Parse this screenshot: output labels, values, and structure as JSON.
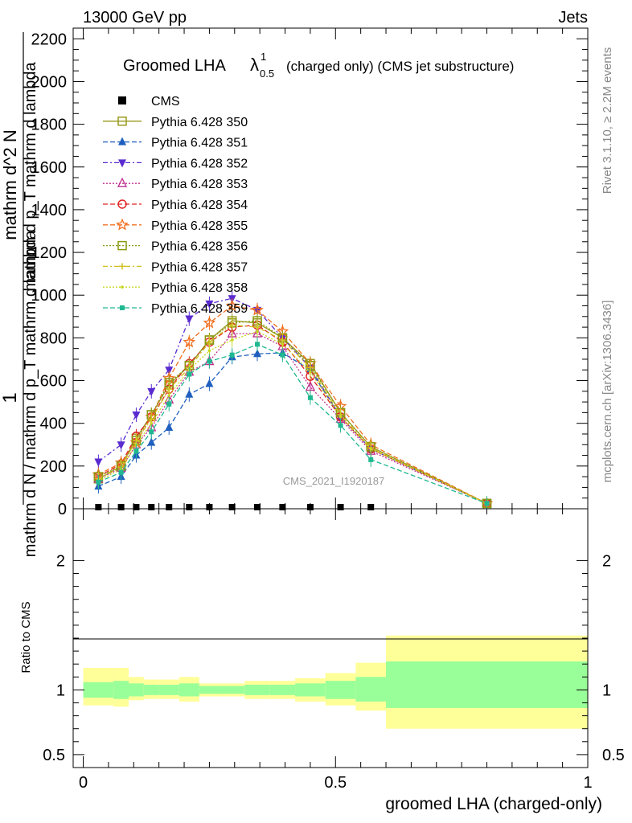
{
  "header": {
    "left": "13000 GeV pp",
    "right": "Jets"
  },
  "side": {
    "rivet": "Rivet 3.1.10, ≥ 2.2M events",
    "mcplots": "mcplots.cern.ch [arXiv:1306.3436]"
  },
  "chart_data": {
    "type": "line",
    "title_main": "Groomed LHA",
    "title_lambda": "λ",
    "title_sup": "1",
    "title_sub": "0.5",
    "title_rest": "(charged only) (CMS jet substructure)",
    "watermark": "CMS_2021_I1920187",
    "ylabel_num": "1",
    "ylabel_den": "mathrm d N / mathrm d p_T mathrm d lambda",
    "ylabel_big": "mathrm d^2 N",
    "ylabel_small": "mathrm d p_T mathrm d lambda",
    "ylim": [
      0,
      2250
    ],
    "yticks": [
      "0",
      "200",
      "400",
      "600",
      "800",
      "1000",
      "1200",
      "1400",
      "1600",
      "1800",
      "2000",
      "2200"
    ],
    "xlim": [
      -0.02,
      1.0
    ],
    "xlabel": "groomed LHA (charged-only)",
    "xticks": [
      "0",
      "0.5",
      "1"
    ],
    "ratio_label": "Ratio to CMS",
    "ratio_ylim": [
      0.4,
      2.4
    ],
    "ratio_yticks": [
      "0.5",
      "1",
      "2"
    ],
    "x": [
      0.03,
      0.075,
      0.105,
      0.135,
      0.17,
      0.21,
      0.25,
      0.295,
      0.345,
      0.395,
      0.45,
      0.51,
      0.57,
      0.8
    ],
    "cms": [
      0,
      0,
      0,
      0,
      0,
      0,
      0,
      0,
      0,
      0,
      0,
      0,
      0,
      0
    ],
    "band_edges": [
      0,
      0.06,
      0.09,
      0.12,
      0.15,
      0.19,
      0.23,
      0.27,
      0.32,
      0.37,
      0.42,
      0.48,
      0.54,
      0.6,
      1.0
    ],
    "band_inner": [
      [
        0.94,
        1.06
      ],
      [
        0.93,
        1.07
      ],
      [
        0.95,
        1.05
      ],
      [
        0.96,
        1.04
      ],
      [
        0.96,
        1.04
      ],
      [
        0.95,
        1.05
      ],
      [
        0.97,
        1.03
      ],
      [
        0.97,
        1.03
      ],
      [
        0.96,
        1.04
      ],
      [
        0.96,
        1.04
      ],
      [
        0.95,
        1.05
      ],
      [
        0.93,
        1.07
      ],
      [
        0.91,
        1.1
      ],
      [
        0.86,
        1.22
      ]
    ],
    "band_outer": [
      [
        0.88,
        1.17
      ],
      [
        0.87,
        1.17
      ],
      [
        0.92,
        1.1
      ],
      [
        0.93,
        1.08
      ],
      [
        0.93,
        1.08
      ],
      [
        0.91,
        1.1
      ],
      [
        0.95,
        1.05
      ],
      [
        0.95,
        1.05
      ],
      [
        0.93,
        1.07
      ],
      [
        0.93,
        1.07
      ],
      [
        0.91,
        1.09
      ],
      [
        0.88,
        1.13
      ],
      [
        0.84,
        1.21
      ],
      [
        0.7,
        1.42
      ]
    ],
    "series": [
      {
        "name": "CMS",
        "color": "#000000",
        "dash": "",
        "marker": "square-filled"
      },
      {
        "name": "Pythia 6.428 350",
        "color": "#9a9a1e",
        "dash": "",
        "marker": "square-open",
        "values": [
          140,
          200,
          330,
          440,
          580,
          670,
          790,
          880,
          870,
          800,
          680,
          450,
          290,
          25
        ]
      },
      {
        "name": "Pythia 6.428 351",
        "color": "#1f5fbf",
        "dash": "6,3",
        "marker": "triangle-up-filled",
        "values": [
          105,
          150,
          250,
          310,
          380,
          535,
          585,
          710,
          725,
          730,
          650,
          430,
          280,
          25
        ]
      },
      {
        "name": "Pythia 6.428 352",
        "color": "#5a2bd0",
        "dash": "6,3,2,3",
        "marker": "triangle-down-filled",
        "values": [
          220,
          300,
          440,
          550,
          650,
          890,
          960,
          985,
          930,
          800,
          660,
          430,
          280,
          25
        ]
      },
      {
        "name": "Pythia 6.428 353",
        "color": "#c03090",
        "dash": "2,2",
        "marker": "triangle-up-open",
        "values": [
          140,
          190,
          300,
          380,
          510,
          640,
          690,
          820,
          820,
          760,
          570,
          420,
          270,
          25
        ]
      },
      {
        "name": "Pythia 6.428 354",
        "color": "#e02020",
        "dash": "6,3",
        "marker": "circle-open",
        "values": [
          150,
          210,
          340,
          430,
          560,
          680,
          780,
          850,
          860,
          780,
          620,
          430,
          280,
          25
        ]
      },
      {
        "name": "Pythia 6.428 355",
        "color": "#f07020",
        "dash": "6,3",
        "marker": "star-open",
        "values": [
          160,
          215,
          310,
          430,
          610,
          780,
          870,
          950,
          930,
          830,
          680,
          480,
          300,
          25
        ]
      },
      {
        "name": "Pythia 6.428 356",
        "color": "#8a9a10",
        "dash": "2,2",
        "marker": "square-open",
        "values": [
          150,
          200,
          320,
          440,
          590,
          670,
          790,
          870,
          880,
          800,
          670,
          450,
          290,
          25
        ]
      },
      {
        "name": "Pythia 6.428 357",
        "color": "#d0c020",
        "dash": "6,3,2,3",
        "marker": "cross",
        "values": [
          140,
          195,
          320,
          420,
          560,
          660,
          780,
          860,
          850,
          790,
          660,
          440,
          285,
          25
        ]
      },
      {
        "name": "Pythia 6.428 358",
        "color": "#c8d820",
        "dash": "2,2",
        "marker": "dot",
        "values": [
          130,
          185,
          300,
          400,
          530,
          650,
          740,
          790,
          830,
          770,
          640,
          430,
          280,
          25
        ]
      },
      {
        "name": "Pythia 6.428 359",
        "color": "#20b890",
        "dash": "6,3",
        "marker": "square-filled-small",
        "values": [
          125,
          170,
          270,
          360,
          490,
          630,
          690,
          720,
          770,
          720,
          520,
          390,
          230,
          25
        ]
      }
    ]
  }
}
